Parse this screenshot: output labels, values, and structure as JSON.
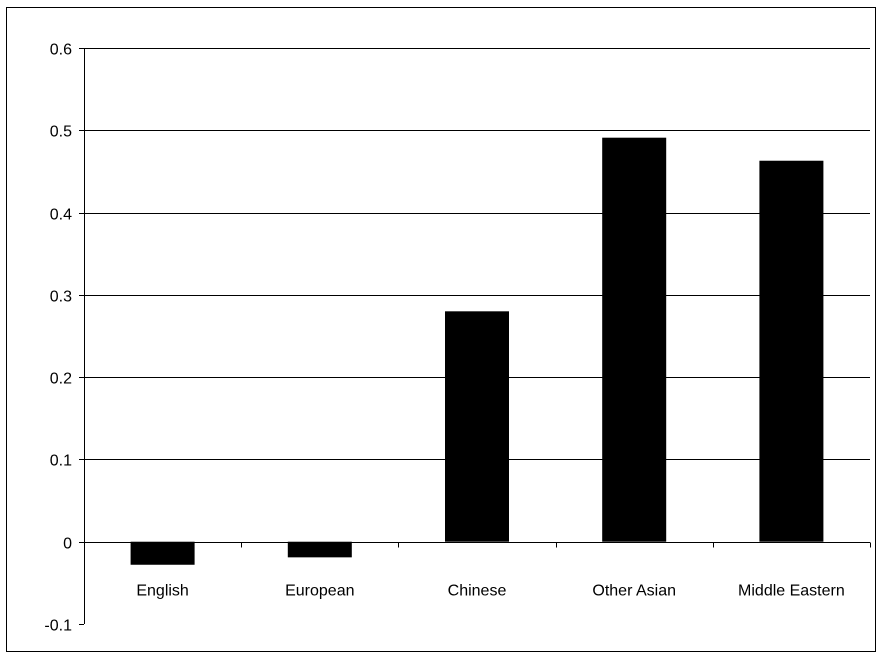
{
  "chart_data": {
    "type": "bar",
    "categories": [
      "English",
      "European",
      "Chinese",
      "Other Asian",
      "Middle Eastern"
    ],
    "values": [
      -0.028,
      -0.019,
      0.28,
      0.491,
      0.463
    ],
    "yticks": [
      "0.6",
      "0.5",
      "0.4",
      "0.3",
      "0.2",
      "0.1",
      "0",
      "-0.1"
    ],
    "ylim": [
      -0.1,
      0.6
    ],
    "grid": "horizontal",
    "bar_color": "#000000",
    "title": "",
    "xlabel": "",
    "ylabel": ""
  }
}
